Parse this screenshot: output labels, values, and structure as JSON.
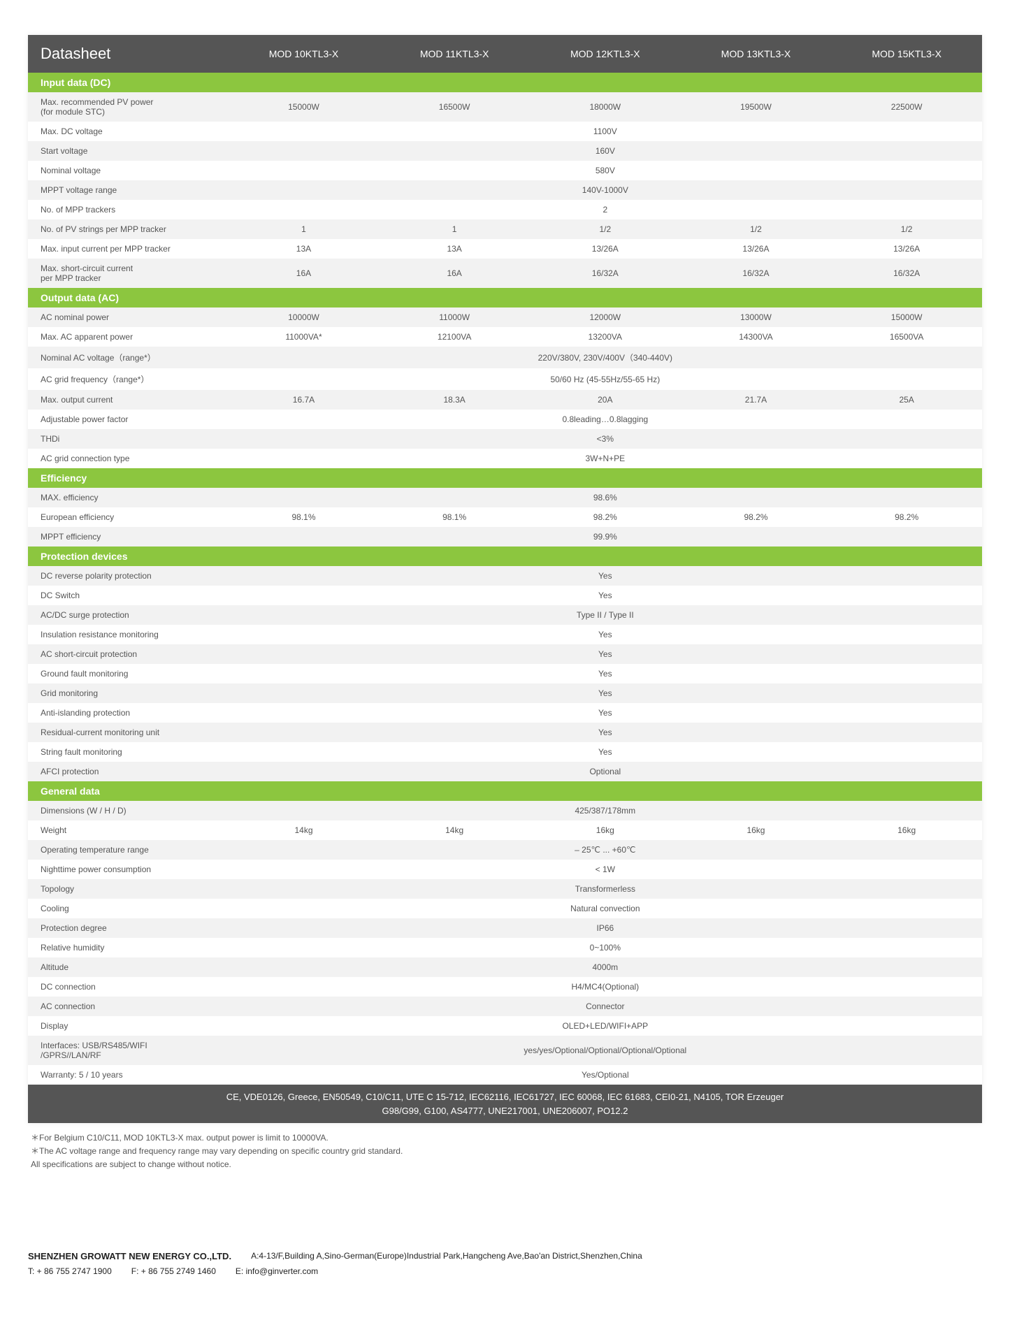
{
  "colors": {
    "header_bg": "#555555",
    "section_bg": "#8cc63f",
    "row_even": "#f2f2f2",
    "row_odd": "#ffffff",
    "text": "#555555"
  },
  "header": {
    "title": "Datasheet",
    "models": [
      "MOD 10KTL3-X",
      "MOD 11KTL3-X",
      "MOD 12KTL3-X",
      "MOD 13KTL3-X",
      "MOD 15KTL3-X"
    ]
  },
  "sections": [
    {
      "title": "Input data (DC)",
      "rows": [
        {
          "label": "Max. recommended PV power\n(for module STC)",
          "values": [
            "15000W",
            "16500W",
            "18000W",
            "19500W",
            "22500W"
          ],
          "shade": "even"
        },
        {
          "label": "Max. DC voltage",
          "merged": "1100V",
          "shade": "odd"
        },
        {
          "label": "Start voltage",
          "merged": "160V",
          "shade": "even"
        },
        {
          "label": "Nominal voltage",
          "merged": "580V",
          "shade": "odd"
        },
        {
          "label": "MPPT voltage range",
          "merged": "140V-1000V",
          "shade": "even"
        },
        {
          "label": "No. of MPP trackers",
          "merged": "2",
          "shade": "odd"
        },
        {
          "label": "No. of PV strings per MPP tracker",
          "values": [
            "1",
            "1",
            "1/2",
            "1/2",
            "1/2"
          ],
          "shade": "even"
        },
        {
          "label": "Max. input current per MPP tracker",
          "values": [
            "13A",
            "13A",
            "13/26A",
            "13/26A",
            "13/26A"
          ],
          "shade": "odd"
        },
        {
          "label": "Max. short-circuit current\nper MPP tracker",
          "values": [
            "16A",
            "16A",
            "16/32A",
            "16/32A",
            "16/32A"
          ],
          "shade": "even"
        }
      ]
    },
    {
      "title": "Output data (AC)",
      "rows": [
        {
          "label": "AC nominal power",
          "values": [
            "10000W",
            "11000W",
            "12000W",
            "13000W",
            "15000W"
          ],
          "shade": "even"
        },
        {
          "label": "Max. AC apparent power",
          "values": [
            "11000VA*",
            "12100VA",
            "13200VA",
            "14300VA",
            "16500VA"
          ],
          "shade": "odd"
        },
        {
          "label": "Nominal AC voltage（range*）",
          "merged": "220V/380V, 230V/400V（340-440V)",
          "shade": "even"
        },
        {
          "label": "AC grid frequency（range*）",
          "merged": "50/60 Hz (45-55Hz/55-65 Hz)",
          "shade": "odd"
        },
        {
          "label": "Max. output current",
          "values": [
            "16.7A",
            "18.3A",
            "20A",
            "21.7A",
            "25A"
          ],
          "shade": "even"
        },
        {
          "label": "Adjustable power factor",
          "merged": "0.8leading…0.8lagging",
          "shade": "odd"
        },
        {
          "label": "THDi",
          "merged": "<3%",
          "shade": "even"
        },
        {
          "label": "AC grid connection type",
          "merged": "3W+N+PE",
          "shade": "odd"
        }
      ]
    },
    {
      "title": "Efficiency",
      "rows": [
        {
          "label": "MAX. efficiency",
          "merged": "98.6%",
          "shade": "even"
        },
        {
          "label": "European efficiency",
          "values": [
            "98.1%",
            "98.1%",
            "98.2%",
            "98.2%",
            "98.2%"
          ],
          "shade": "odd"
        },
        {
          "label": "MPPT efficiency",
          "merged": "99.9%",
          "shade": "even"
        }
      ]
    },
    {
      "title": "Protection devices",
      "rows": [
        {
          "label": "DC reverse polarity protection",
          "merged": "Yes",
          "shade": "even"
        },
        {
          "label": "DC Switch",
          "merged": "Yes",
          "shade": "odd"
        },
        {
          "label": "AC/DC surge protection",
          "merged": "Type II / Type II",
          "shade": "even"
        },
        {
          "label": "Insulation resistance monitoring",
          "merged": "Yes",
          "shade": "odd"
        },
        {
          "label": "AC short-circuit protection",
          "merged": "Yes",
          "shade": "even"
        },
        {
          "label": "Ground fault monitoring",
          "merged": "Yes",
          "shade": "odd"
        },
        {
          "label": "Grid monitoring",
          "merged": "Yes",
          "shade": "even"
        },
        {
          "label": "Anti-islanding  protection",
          "merged": "Yes",
          "shade": "odd"
        },
        {
          "label": "Residual-current  monitoring unit",
          "merged": "Yes",
          "shade": "even"
        },
        {
          "label": "String fault monitoring",
          "merged": "Yes",
          "shade": "odd"
        },
        {
          "label": "AFCI protection",
          "merged": "Optional",
          "shade": "even"
        }
      ]
    },
    {
      "title": "General data",
      "rows": [
        {
          "label": "Dimensions (W / H / D)",
          "merged": "425/387/178mm",
          "shade": "even"
        },
        {
          "label": "Weight",
          "values": [
            "14kg",
            "14kg",
            "16kg",
            "16kg",
            "16kg"
          ],
          "shade": "odd"
        },
        {
          "label": "Operating temperature range",
          "merged": "– 25℃ ... +60℃",
          "shade": "even"
        },
        {
          "label": "Nighttime power consumption",
          "merged": "< 1W",
          "shade": "odd"
        },
        {
          "label": "Topology",
          "merged": "Transformerless",
          "shade": "even"
        },
        {
          "label": " Cooling",
          "merged": "Natural convection",
          "shade": "odd"
        },
        {
          "label": "Protection degree",
          "merged": "IP66",
          "shade": "even"
        },
        {
          "label": "Relative humidity",
          "merged": "0~100%",
          "shade": "odd"
        },
        {
          "label": "Altitude",
          "merged": "4000m",
          "shade": "even"
        },
        {
          "label": "DC connection",
          "merged": "H4/MC4(Optional)",
          "shade": "odd"
        },
        {
          "label": "AC connection",
          "merged": "Connector",
          "shade": "even"
        },
        {
          "label": "Display",
          "merged": "OLED+LED/WIFI+APP",
          "shade": "odd"
        },
        {
          "label": "Interfaces: USB/RS485/WIFI\n/GPRS//LAN/RF",
          "merged": "yes/yes/Optional/Optional/Optional/Optional",
          "shade": "even"
        },
        {
          "label": "Warranty: 5 / 10 years",
          "merged": "Yes/Optional",
          "shade": "odd"
        }
      ]
    }
  ],
  "certifications": "CE, VDE0126, Greece, EN50549, C10/C11, UTE C 15-712, IEC62116, IEC61727, IEC 60068, IEC 61683, CEI0-21, N4105, TOR Erzeuger\nG98/G99,  G100,  AS4777, UNE217001, UNE206007, PO12.2",
  "footnotes": [
    "＊For Belgium C10/C11, MOD 10KTL3-X max. output power is limit to 10000VA.",
    "＊The AC voltage range and frequency range may vary depending on specific country grid standard.",
    "  All specifications are subject to change without notice."
  ],
  "company": {
    "name": "SHENZHEN GROWATT NEW ENERGY CO.,LTD.",
    "address": "A:4-13/F,Building A,Sino-German(Europe)Industrial Park,Hangcheng Ave,Bao'an District,Shenzhen,China",
    "tel": "T:  + 86 755 2747 1900",
    "fax": "F:  + 86 755 2749 1460",
    "email": "E:  info@ginverter.com"
  }
}
